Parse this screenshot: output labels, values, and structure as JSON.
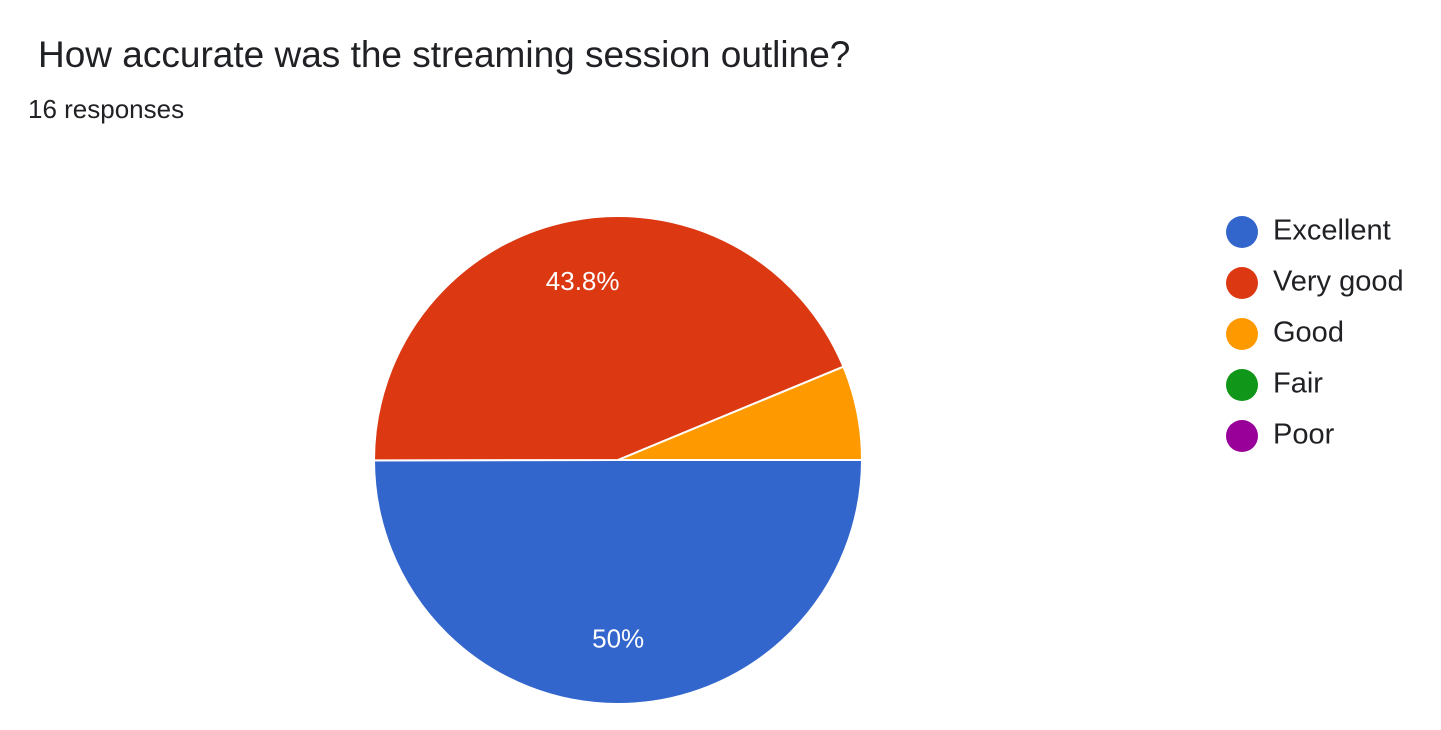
{
  "chart_data": {
    "type": "pie",
    "title": "How accurate was the streaming session outline?",
    "subtitle": "16 responses",
    "categories": [
      "Excellent",
      "Very good",
      "Good",
      "Fair",
      "Poor"
    ],
    "values": [
      50,
      43.8,
      6.25,
      0,
      0
    ],
    "value_labels": [
      "50%",
      "43.8%",
      null,
      null,
      null
    ],
    "colors": [
      "#3366cc",
      "#dc3912",
      "#ff9900",
      "#109618",
      "#990099"
    ],
    "legend": "right"
  }
}
